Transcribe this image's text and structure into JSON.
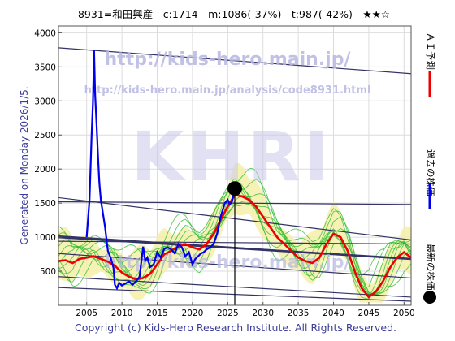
{
  "header": {
    "title": "8931=和田興産　c:1714　m:1086(-37%)　t:987(-42%)　★★☆"
  },
  "watermark": {
    "line1": "http://kids-hero.main.jp/",
    "line2": "http://kids-hero.main.jp/analysis/code8931.html",
    "big": "KHRI"
  },
  "left_label": "Generated on Monday 2026/1/5.",
  "footer": "Copyright (c) Kids-Hero Research Institute. All Rights Reserved.",
  "legend": {
    "ai": "ＡＩ予測",
    "past": "過去の株価",
    "latest": "最新の株価"
  },
  "colors": {
    "past": "#0000ee",
    "ai": "#ee0000",
    "band_fill": "#f5f0a8",
    "band_green": "#33bb33",
    "trend": "#333366"
  },
  "chart_data": {
    "type": "line",
    "xlim": [
      2001,
      2051
    ],
    "ylim": [
      0,
      4100
    ],
    "x_ticks": [
      2005,
      2010,
      2015,
      2020,
      2025,
      2030,
      2035,
      2040,
      2045,
      2050
    ],
    "y_ticks": [
      500,
      1000,
      1500,
      2000,
      2500,
      3000,
      3500,
      4000
    ],
    "grid": true,
    "series": [
      {
        "key": "past",
        "x": [
          2005.0,
          2005.4,
          2005.7,
          2005.9,
          2006.05,
          2006.2,
          2006.4,
          2006.6,
          2006.8,
          2007.0,
          2007.3,
          2007.6,
          2008.0,
          2008.4,
          2008.8,
          2009.0,
          2009.3,
          2009.6,
          2010.0,
          2010.5,
          2011.0,
          2011.5,
          2012.0,
          2012.5,
          2013.0,
          2013.3,
          2013.6,
          2014.0,
          2014.5,
          2015.0,
          2015.5,
          2016.0,
          2016.5,
          2017.0,
          2017.5,
          2018.0,
          2018.5,
          2019.0,
          2019.5,
          2020.0,
          2020.4,
          2020.8,
          2021.2,
          2021.6,
          2022.0,
          2022.5,
          2023.0,
          2023.5,
          2024.0,
          2024.3,
          2024.6,
          2025.0,
          2025.3,
          2025.6,
          2025.9,
          2026.0
        ],
        "y": [
          1000,
          1550,
          2500,
          3000,
          3750,
          3100,
          2650,
          2200,
          1800,
          1550,
          1350,
          1150,
          800,
          700,
          550,
          300,
          250,
          330,
          290,
          320,
          350,
          300,
          350,
          420,
          860,
          650,
          700,
          560,
          600,
          780,
          700,
          830,
          850,
          820,
          760,
          900,
          850,
          720,
          780,
          600,
          680,
          720,
          760,
          780,
          820,
          850,
          900,
          1050,
          1300,
          1400,
          1500,
          1550,
          1480,
          1520,
          1650,
          1714
        ]
      },
      {
        "key": "ai",
        "x": [
          2001,
          2002,
          2003,
          2004,
          2005,
          2006,
          2007,
          2008,
          2009,
          2010,
          2011,
          2012,
          2013,
          2014,
          2015,
          2016,
          2017,
          2018,
          2019,
          2020,
          2021,
          2022,
          2023,
          2024,
          2025,
          2026,
          2027,
          2028,
          2029,
          2030,
          2031,
          2032,
          2033,
          2034,
          2035,
          2036,
          2037,
          2038,
          2039,
          2040,
          2041,
          2042,
          2043,
          2044,
          2045,
          2046,
          2047,
          2048,
          2049,
          2050,
          2051
        ],
        "y": [
          650,
          660,
          620,
          680,
          700,
          720,
          680,
          640,
          580,
          480,
          420,
          380,
          400,
          460,
          600,
          750,
          800,
          860,
          900,
          850,
          820,
          900,
          1050,
          1250,
          1450,
          1620,
          1600,
          1550,
          1450,
          1300,
          1150,
          1000,
          900,
          800,
          700,
          650,
          620,
          700,
          900,
          1050,
          1000,
          800,
          500,
          250,
          120,
          200,
          350,
          550,
          700,
          780,
          700
        ]
      }
    ],
    "latest_point": {
      "x": 2026.0,
      "y": 1714
    }
  }
}
